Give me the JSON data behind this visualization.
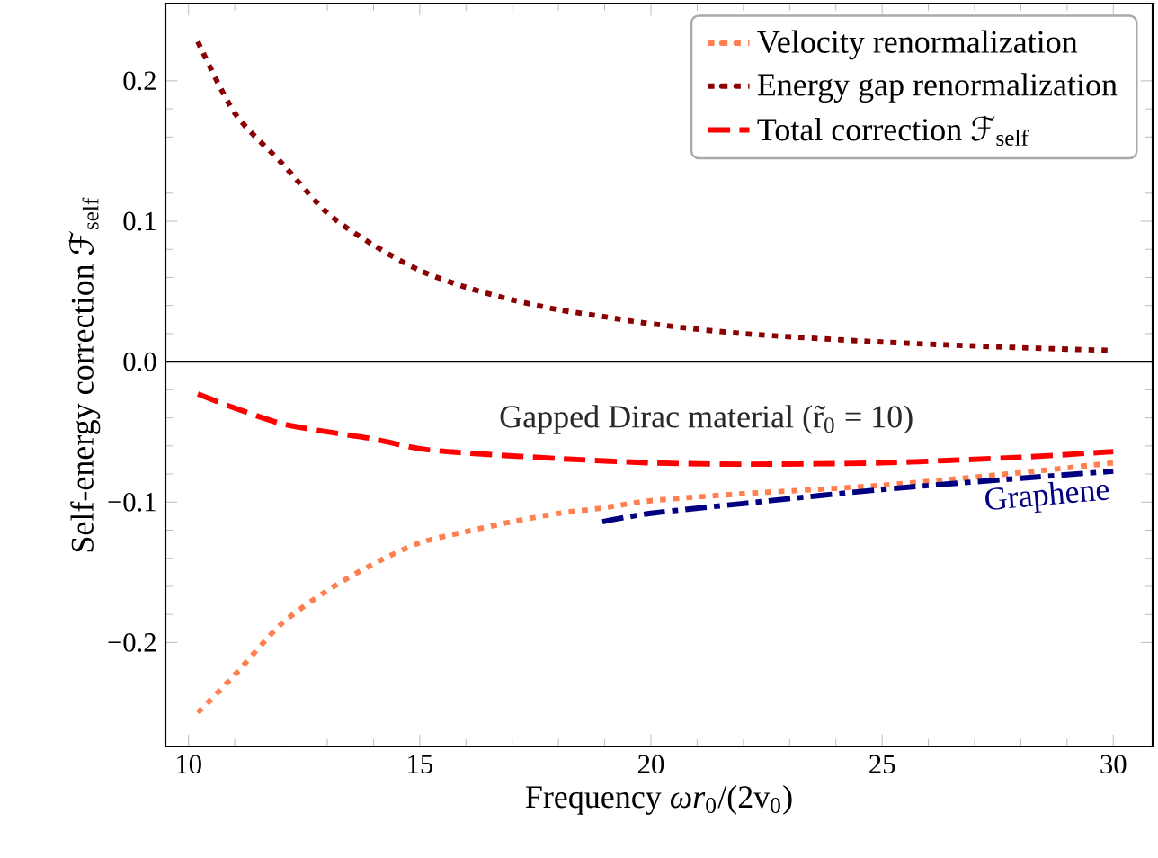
{
  "chart_data": {
    "type": "line",
    "xlabel": "Frequency *ωr*$_{0}$/(2v$_{0}$)",
    "ylabel": "Self-energy correction ℱ$_{self}$",
    "xlim": [
      9.5,
      30.85
    ],
    "ylim": [
      -0.274,
      0.255
    ],
    "xticks": [
      10,
      15,
      20,
      25,
      30
    ],
    "yticks": [
      {
        "value": -0.2,
        "label": "−0.2"
      },
      {
        "value": -0.1,
        "label": "−0.1"
      },
      {
        "value": 0,
        "label": "0.0"
      },
      {
        "value": 0.1,
        "label": "0.1"
      },
      {
        "value": 0.2,
        "label": "0.2"
      }
    ],
    "legend": "top right",
    "grid": false,
    "ref_lines": [
      {
        "axis": "y",
        "value": 0,
        "color": "#000000",
        "line_style": "solid"
      }
    ],
    "annotations": [
      "Gapped Dirac material (r̃$_{0}$ = 10)"
    ],
    "series": [
      {
        "name": "Velocity renormalization",
        "color": "#ff7f50",
        "line_style": "dotted",
        "x": [
          10.2,
          11,
          12,
          13,
          14,
          15,
          16,
          17,
          18,
          19,
          20,
          22,
          25,
          28,
          30
        ],
        "values": [
          -0.25,
          -0.223,
          -0.187,
          -0.163,
          -0.144,
          -0.129,
          -0.121,
          -0.114,
          -0.108,
          -0.104,
          -0.099,
          -0.094,
          -0.088,
          -0.079,
          -0.072
        ]
      },
      {
        "name": "Energy gap renormalization",
        "color": "#8b0000",
        "line_style": "dotted",
        "x": [
          10.2,
          11,
          12,
          13,
          14,
          15,
          16,
          17,
          18,
          19,
          20,
          22,
          25,
          28,
          30
        ],
        "values": [
          0.228,
          0.177,
          0.142,
          0.106,
          0.083,
          0.065,
          0.053,
          0.044,
          0.037,
          0.032,
          0.027,
          0.02,
          0.014,
          0.01,
          0.008
        ]
      },
      {
        "name": "Total correction ℱ$_{self}$",
        "color": "#ff0000",
        "line_style": "dashed",
        "x": [
          10.2,
          11,
          12,
          13,
          14,
          15,
          16,
          18,
          20,
          22,
          25,
          28,
          30
        ],
        "values": [
          -0.023,
          -0.033,
          -0.044,
          -0.05,
          -0.055,
          -0.062,
          -0.065,
          -0.069,
          -0.072,
          -0.073,
          -0.072,
          -0.068,
          -0.064
        ]
      },
      {
        "name": "Graphene",
        "color": "#000080",
        "line_style": "dashdot",
        "x": [
          18.95,
          20,
          22,
          25,
          28,
          30
        ],
        "values": [
          -0.114,
          -0.108,
          -0.101,
          -0.091,
          -0.083,
          -0.078
        ]
      }
    ]
  }
}
